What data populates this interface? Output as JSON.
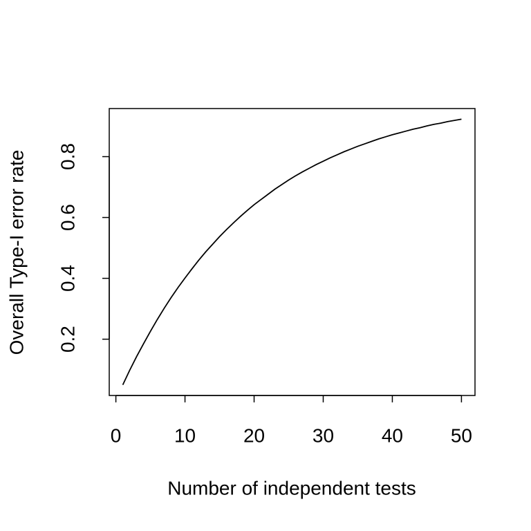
{
  "chart_data": {
    "type": "line",
    "x_label": "Number of independent tests",
    "y_label": "Overall Type-I error rate",
    "x": [
      1,
      2,
      3,
      4,
      5,
      6,
      7,
      8,
      9,
      10,
      11,
      12,
      13,
      14,
      15,
      16,
      17,
      18,
      19,
      20,
      21,
      22,
      23,
      24,
      25,
      26,
      27,
      28,
      29,
      30,
      31,
      32,
      33,
      34,
      35,
      36,
      37,
      38,
      39,
      40,
      41,
      42,
      43,
      44,
      45,
      46,
      47,
      48,
      49,
      50
    ],
    "values": [
      0.05,
      0.098,
      0.143,
      0.185,
      0.226,
      0.265,
      0.302,
      0.337,
      0.37,
      0.401,
      0.431,
      0.46,
      0.487,
      0.512,
      0.537,
      0.56,
      0.582,
      0.603,
      0.623,
      0.642,
      0.659,
      0.676,
      0.693,
      0.708,
      0.723,
      0.737,
      0.75,
      0.762,
      0.774,
      0.785,
      0.796,
      0.806,
      0.816,
      0.825,
      0.834,
      0.842,
      0.85,
      0.858,
      0.865,
      0.872,
      0.878,
      0.884,
      0.89,
      0.895,
      0.901,
      0.906,
      0.91,
      0.915,
      0.919,
      0.923
    ],
    "color": "#000000",
    "xlim": [
      -0.96,
      51.96
    ],
    "xticks": [
      0,
      10,
      20,
      30,
      40,
      50
    ],
    "ylim": [
      0.015,
      0.958
    ],
    "yticks": [
      0.2,
      0.4,
      0.6,
      0.8
    ]
  }
}
